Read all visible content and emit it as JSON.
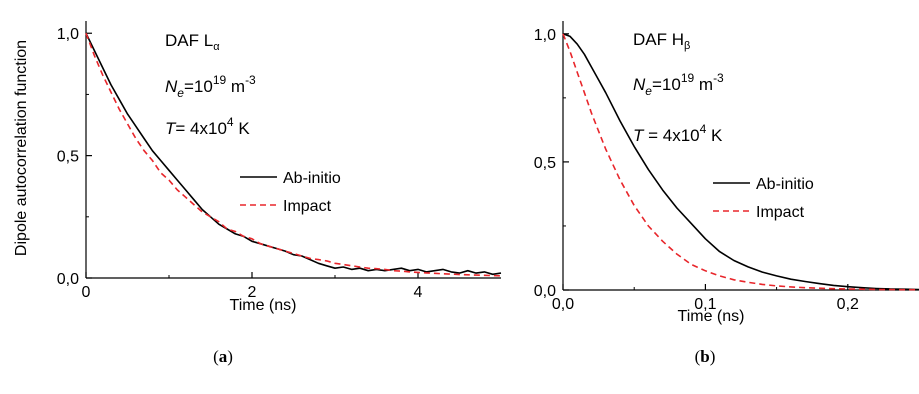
{
  "chart_data": [
    {
      "type": "line",
      "panel_label": "a",
      "xlabel": "Time (ns)",
      "ylabel": "Dipole autocorrelation function",
      "xlim": [
        0,
        5
      ],
      "ylim": [
        0,
        1.05
      ],
      "xticks": [
        0,
        2,
        4
      ],
      "xtick_labels": [
        "0",
        "2",
        "4"
      ],
      "yticks": [
        0,
        0.5,
        1.0
      ],
      "ytick_labels": [
        "0,0",
        "0,5",
        "1,0"
      ],
      "legend": {
        "placement": "middle-right"
      },
      "annotations": {
        "line1": {
          "main": "DAF L",
          "sub": "α"
        },
        "line2": {
          "pre": "N",
          "sub": "e",
          "mid": "=10",
          "sup": "19",
          "post": " m",
          "sup2": "-3"
        },
        "line3": {
          "pre": "T",
          "mid": "= 4x10",
          "sup": "4",
          "post": " K"
        }
      },
      "series": [
        {
          "name": "Ab-initio",
          "color": "#000000",
          "style": "solid",
          "x": [
            0,
            0.1,
            0.2,
            0.3,
            0.4,
            0.5,
            0.6,
            0.7,
            0.8,
            0.9,
            1.0,
            1.1,
            1.2,
            1.3,
            1.4,
            1.5,
            1.6,
            1.7,
            1.8,
            1.9,
            2.0,
            2.1,
            2.2,
            2.3,
            2.4,
            2.5,
            2.6,
            2.7,
            2.8,
            2.9,
            3.0,
            3.1,
            3.2,
            3.3,
            3.4,
            3.5,
            3.6,
            3.7,
            3.8,
            3.9,
            4.0,
            4.1,
            4.2,
            4.3,
            4.4,
            4.5,
            4.6,
            4.7,
            4.8,
            4.9,
            5.0
          ],
          "y": [
            1.0,
            0.93,
            0.86,
            0.79,
            0.73,
            0.67,
            0.62,
            0.57,
            0.52,
            0.48,
            0.44,
            0.4,
            0.36,
            0.32,
            0.28,
            0.25,
            0.22,
            0.2,
            0.18,
            0.17,
            0.15,
            0.14,
            0.13,
            0.12,
            0.11,
            0.095,
            0.09,
            0.075,
            0.06,
            0.05,
            0.04,
            0.045,
            0.035,
            0.04,
            0.03,
            0.035,
            0.03,
            0.035,
            0.04,
            0.03,
            0.035,
            0.025,
            0.03,
            0.035,
            0.025,
            0.02,
            0.03,
            0.02,
            0.025,
            0.015,
            0.02
          ]
        },
        {
          "name": "Impact",
          "color": "#e8262b",
          "style": "dashed",
          "x": [
            0,
            0.1,
            0.2,
            0.3,
            0.4,
            0.5,
            0.6,
            0.7,
            0.8,
            0.9,
            1.0,
            1.1,
            1.2,
            1.3,
            1.4,
            1.5,
            1.6,
            1.7,
            1.8,
            1.9,
            2.0,
            2.1,
            2.2,
            2.3,
            2.4,
            2.5,
            2.6,
            2.7,
            2.8,
            2.9,
            3.0,
            3.1,
            3.2,
            3.3,
            3.4,
            3.5,
            3.6,
            3.7,
            3.8,
            3.9,
            4.0,
            4.1,
            4.2,
            4.3,
            4.4,
            4.5,
            4.6,
            4.7,
            4.8,
            4.9,
            5.0
          ],
          "y": [
            1.0,
            0.91,
            0.83,
            0.76,
            0.69,
            0.63,
            0.57,
            0.52,
            0.48,
            0.43,
            0.4,
            0.36,
            0.33,
            0.3,
            0.27,
            0.25,
            0.23,
            0.2,
            0.19,
            0.17,
            0.16,
            0.14,
            0.13,
            0.12,
            0.11,
            0.1,
            0.09,
            0.08,
            0.075,
            0.07,
            0.06,
            0.055,
            0.05,
            0.045,
            0.04,
            0.038,
            0.035,
            0.03,
            0.028,
            0.025,
            0.023,
            0.021,
            0.019,
            0.017,
            0.016,
            0.014,
            0.013,
            0.012,
            0.011,
            0.01,
            0.009
          ]
        }
      ]
    },
    {
      "type": "line",
      "panel_label": "b",
      "xlabel": "Time (ns)",
      "ylabel": "",
      "xlim": [
        0,
        0.25
      ],
      "ylim": [
        0,
        1.05
      ],
      "xticks": [
        0,
        0.1,
        0.2
      ],
      "xtick_labels": [
        "0,0",
        "0,1",
        "0,2"
      ],
      "yticks": [
        0,
        0.5,
        1.0
      ],
      "ytick_labels": [
        "0,0",
        "0,5",
        "1,0"
      ],
      "legend": {
        "placement": "middle-right"
      },
      "annotations": {
        "line1": {
          "main": "DAF H",
          "sub": "β"
        },
        "line2": {
          "pre": "N",
          "sub": "e",
          "mid": "=10",
          "sup": "19",
          "post": " m",
          "sup2": "-3"
        },
        "line3": {
          "pre": "T",
          "mid": " = 4x10",
          "sup": "4",
          "post": " K"
        }
      },
      "series": [
        {
          "name": "Ab-initio",
          "color": "#000000",
          "style": "solid",
          "x": [
            0,
            0.005,
            0.01,
            0.015,
            0.02,
            0.025,
            0.03,
            0.04,
            0.05,
            0.06,
            0.07,
            0.08,
            0.09,
            0.1,
            0.11,
            0.12,
            0.13,
            0.14,
            0.15,
            0.16,
            0.17,
            0.18,
            0.19,
            0.2,
            0.21,
            0.22,
            0.23,
            0.24,
            0.25
          ],
          "y": [
            1.0,
            0.99,
            0.96,
            0.92,
            0.87,
            0.82,
            0.77,
            0.66,
            0.56,
            0.47,
            0.39,
            0.32,
            0.26,
            0.2,
            0.15,
            0.115,
            0.09,
            0.07,
            0.055,
            0.042,
            0.033,
            0.025,
            0.018,
            0.013,
            0.009,
            0.006,
            0.004,
            0.003,
            0.002
          ]
        },
        {
          "name": "Impact",
          "color": "#e8262b",
          "style": "dashed",
          "x": [
            0,
            0.005,
            0.01,
            0.015,
            0.02,
            0.025,
            0.03,
            0.04,
            0.05,
            0.06,
            0.07,
            0.08,
            0.09,
            0.1,
            0.11,
            0.12,
            0.13,
            0.14,
            0.15,
            0.16,
            0.17,
            0.18,
            0.19,
            0.2,
            0.21,
            0.22,
            0.23,
            0.24,
            0.25
          ],
          "y": [
            1.0,
            0.93,
            0.85,
            0.77,
            0.69,
            0.62,
            0.55,
            0.43,
            0.33,
            0.25,
            0.19,
            0.14,
            0.1,
            0.075,
            0.055,
            0.04,
            0.03,
            0.022,
            0.016,
            0.012,
            0.009,
            0.007,
            0.005,
            0.004,
            0.003,
            0.002,
            0.0015,
            0.001,
            0.001
          ]
        }
      ]
    }
  ],
  "captions": [
    "(a)",
    "(b)"
  ]
}
